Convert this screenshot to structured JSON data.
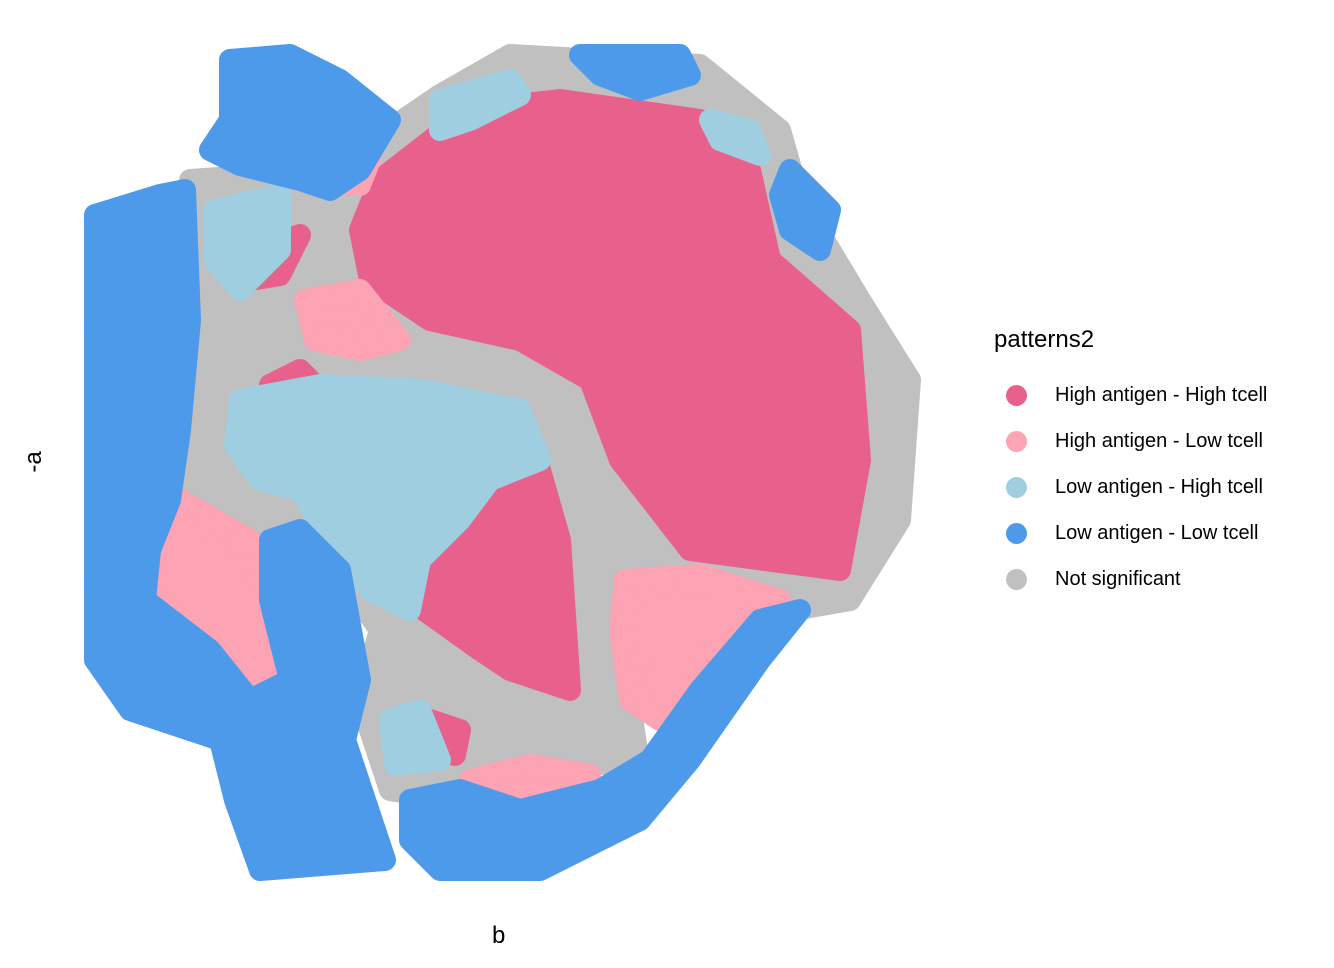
{
  "chart_data": {
    "type": "scatter",
    "xlabel": "b",
    "ylabel": "-a",
    "grid": false,
    "legend_position": "right",
    "legend": {
      "title": "patterns2",
      "entries": [
        {
          "label": "High antigen - High tcell",
          "color": "#E8618C"
        },
        {
          "label": "High antigen - Low tcell",
          "color": "#FCA3B4"
        },
        {
          "label": "Low antigen - High tcell",
          "color": "#9ECEE0"
        },
        {
          "label": "Low antigen - Low tcell",
          "color": "#4D9AEA"
        },
        {
          "label": "Not significant",
          "color": "#C0C0C0"
        }
      ]
    },
    "series": [
      {
        "name": "Not significant",
        "regions": [
          [
            [
              190,
              180
            ],
            [
              330,
              170
            ],
            [
              440,
              95
            ],
            [
              510,
              55
            ],
            [
              600,
              60
            ],
            [
              700,
              65
            ],
            [
              780,
              130
            ],
            [
              800,
              200
            ],
            [
              860,
              300
            ],
            [
              910,
              380
            ],
            [
              900,
              520
            ],
            [
              850,
              600
            ],
            [
              620,
              640
            ],
            [
              640,
              770
            ],
            [
              580,
              760
            ],
            [
              450,
              800
            ],
            [
              390,
              790
            ],
            [
              360,
              700
            ],
            [
              380,
              630
            ],
            [
              330,
              560
            ],
            [
              250,
              520
            ],
            [
              160,
              500
            ],
            [
              200,
              420
            ],
            [
              200,
              300
            ],
            [
              190,
              230
            ]
          ]
        ]
      },
      {
        "name": "High antigen - High tcell",
        "regions": [
          [
            [
              380,
              180
            ],
            [
              470,
              110
            ],
            [
              560,
              100
            ],
            [
              700,
              120
            ],
            [
              750,
              170
            ],
            [
              770,
              260
            ],
            [
              850,
              330
            ],
            [
              860,
              460
            ],
            [
              840,
              570
            ],
            [
              690,
              550
            ],
            [
              620,
              460
            ],
            [
              590,
              380
            ],
            [
              520,
              340
            ],
            [
              430,
              320
            ],
            [
              370,
              280
            ],
            [
              360,
              230
            ]
          ],
          [
            [
              410,
              560
            ],
            [
              470,
              510
            ],
            [
              540,
              470
            ],
            [
              560,
              540
            ],
            [
              570,
              690
            ],
            [
              510,
              670
            ],
            [
              480,
              650
            ],
            [
              410,
              600
            ]
          ],
          [
            [
              255,
              250
            ],
            [
              300,
              235
            ],
            [
              280,
              275
            ],
            [
              250,
              280
            ]
          ],
          [
            [
              270,
              385
            ],
            [
              300,
              370
            ],
            [
              320,
              390
            ],
            [
              275,
              395
            ]
          ],
          [
            [
              430,
              720
            ],
            [
              460,
              730
            ],
            [
              455,
              755
            ],
            [
              430,
              745
            ]
          ]
        ]
      },
      {
        "name": "High antigen - Low tcell",
        "regions": [
          [
            [
              150,
              550
            ],
            [
              180,
              500
            ],
            [
              250,
              540
            ],
            [
              270,
              600
            ],
            [
              285,
              650
            ],
            [
              270,
              700
            ],
            [
              240,
              700
            ],
            [
              180,
              630
            ],
            [
              150,
              590
            ]
          ],
          [
            [
              305,
              300
            ],
            [
              360,
              290
            ],
            [
              400,
              340
            ],
            [
              360,
              350
            ],
            [
              315,
              340
            ]
          ],
          [
            [
              625,
              580
            ],
            [
              700,
              575
            ],
            [
              780,
              600
            ],
            [
              720,
              660
            ],
            [
              660,
              720
            ],
            [
              630,
              700
            ],
            [
              620,
              630
            ]
          ],
          [
            [
              470,
              780
            ],
            [
              530,
              765
            ],
            [
              590,
              775
            ],
            [
              560,
              800
            ],
            [
              480,
              810
            ]
          ],
          [
            [
              335,
              170
            ],
            [
              370,
              160
            ],
            [
              360,
              185
            ],
            [
              340,
              185
            ]
          ]
        ]
      },
      {
        "name": "Low antigen - High tcell",
        "regions": [
          [
            [
              240,
              400
            ],
            [
              320,
              385
            ],
            [
              420,
              390
            ],
            [
              520,
              410
            ],
            [
              540,
              460
            ],
            [
              490,
              480
            ],
            [
              460,
              520
            ],
            [
              420,
              560
            ],
            [
              410,
              610
            ],
            [
              370,
              590
            ],
            [
              330,
              540
            ],
            [
              300,
              490
            ],
            [
              260,
              480
            ],
            [
              235,
              445
            ]
          ],
          [
            [
              215,
              210
            ],
            [
              280,
              195
            ],
            [
              280,
              250
            ],
            [
              240,
              290
            ],
            [
              215,
              260
            ]
          ],
          [
            [
              440,
              100
            ],
            [
              510,
              80
            ],
            [
              520,
              95
            ],
            [
              470,
              120
            ],
            [
              440,
              130
            ]
          ],
          [
            [
              710,
              120
            ],
            [
              750,
              130
            ],
            [
              760,
              155
            ],
            [
              720,
              140
            ]
          ],
          [
            [
              390,
              720
            ],
            [
              420,
              710
            ],
            [
              440,
              760
            ],
            [
              395,
              765
            ]
          ]
        ]
      },
      {
        "name": "Low antigen - Low tcell",
        "regions": [
          [
            [
              95,
              215
            ],
            [
              160,
              195
            ],
            [
              185,
              190
            ],
            [
              190,
              320
            ],
            [
              180,
              430
            ],
            [
              170,
              500
            ],
            [
              150,
              550
            ],
            [
              145,
              600
            ],
            [
              210,
              650
            ],
            [
              250,
              700
            ],
            [
              290,
              680
            ],
            [
              270,
              600
            ],
            [
              270,
              540
            ],
            [
              300,
              530
            ],
            [
              340,
              570
            ],
            [
              360,
              680
            ],
            [
              345,
              740
            ],
            [
              385,
              860
            ],
            [
              260,
              870
            ],
            [
              235,
              800
            ],
            [
              220,
              740
            ],
            [
              130,
              710
            ],
            [
              95,
              660
            ],
            [
              95,
              500
            ],
            [
              95,
              350
            ]
          ],
          [
            [
              230,
              60
            ],
            [
              290,
              55
            ],
            [
              340,
              80
            ],
            [
              390,
              120
            ],
            [
              360,
              170
            ],
            [
              330,
              190
            ],
            [
              300,
              180
            ],
            [
              240,
              165
            ],
            [
              210,
              150
            ],
            [
              230,
              120
            ]
          ],
          [
            [
              410,
              800
            ],
            [
              460,
              790
            ],
            [
              520,
              810
            ],
            [
              600,
              790
            ],
            [
              650,
              760
            ],
            [
              700,
              690
            ],
            [
              760,
              620
            ],
            [
              800,
              610
            ],
            [
              760,
              660
            ],
            [
              690,
              760
            ],
            [
              640,
              820
            ],
            [
              540,
              870
            ],
            [
              440,
              870
            ],
            [
              410,
              840
            ]
          ],
          [
            [
              580,
              55
            ],
            [
              680,
              55
            ],
            [
              690,
              75
            ],
            [
              640,
              90
            ],
            [
              600,
              75
            ]
          ],
          [
            [
              790,
              170
            ],
            [
              830,
              210
            ],
            [
              820,
              250
            ],
            [
              790,
              230
            ],
            [
              780,
              195
            ]
          ]
        ]
      }
    ]
  }
}
